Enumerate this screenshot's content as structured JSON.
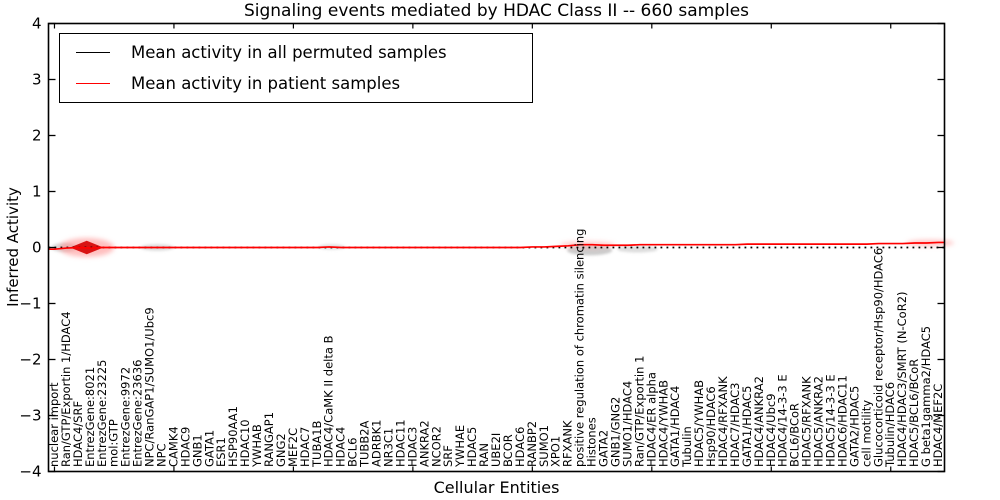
{
  "chart_data": {
    "type": "line",
    "title": "Signaling events mediated by HDAC Class II -- 660 samples",
    "xlabel": "Cellular Entities",
    "ylabel": "Inferred Activity",
    "ylim": [
      -4,
      4
    ],
    "yticks": [
      -4,
      -3,
      -2,
      -1,
      0,
      1,
      2,
      3,
      4
    ],
    "ytick_labels": [
      "−4",
      "−3",
      "−2",
      "−1",
      "0",
      "1",
      "2",
      "3",
      "4"
    ],
    "x_major_tick_every": 10,
    "grid": false,
    "legend_position": "upper left",
    "categories": [
      "nuclear import",
      "Ran/GTP/Exportin 1/HDAC4",
      "HDAC4/SRF",
      "EntrezGene:8021",
      "EntrezGene:23225",
      "mol:GTP",
      "EntrezGene:9972",
      "EntrezGene:23636",
      "NPC/RanGAP1/SUMO1/Ubc9",
      "NPC",
      "CAMK4",
      "HDAC9",
      "GNB1",
      "GATA1",
      "ESR1",
      "HSP90AA1",
      "HDAC10",
      "YWHAB",
      "RANGAP1",
      "GNG2",
      "MEF2C",
      "HDAC7",
      "TUBA1B",
      "HDAC4/CaMK II delta B",
      "HDAC4",
      "BCL6",
      "TUBB2A",
      "ADRBK1",
      "NR3C1",
      "HDAC11",
      "HDAC3",
      "ANKRA2",
      "NCOR2",
      "SRF",
      "YWHAE",
      "HDAC5",
      "RAN",
      "UBE2I",
      "BCOR",
      "HDAC6",
      "RANBP2",
      "SUMO1",
      "XPO1",
      "RFXANK",
      "positive regulation of chromatin silencing",
      "Histones",
      "GATA2",
      "GNB1/GNG2",
      "SUMO1/HDAC4",
      "Ran/GTP/Exportin 1",
      "HDAC4/ER alpha",
      "HDAC4/YWHAB",
      "GATA1/HDAC4",
      "Tubulin",
      "HDAC5/YWHAB",
      "Hsp90/HDAC6",
      "HDAC4/RFXANK",
      "HDAC7/HDAC3",
      "GATA1/HDAC5",
      "HDAC4/ANKRA2",
      "HDAC4/Ubc9",
      "HDAC4/14-3-3 E",
      "BCL6/BCoR",
      "HDAC5/RFXANK",
      "HDAC5/ANKRA2",
      "HDAC5/14-3-3 E",
      "HDAC6/HDAC11",
      "GATA2/HDAC5",
      "cell motility",
      "Glucocorticoid receptor/Hsp90/HDAC6",
      "Tubulin/HDAC6",
      "HDAC4/HDAC3/SMRT (N-CoR2)",
      "HDAC5/BCL6/BCoR",
      "G beta1gamma2/HDAC5",
      "HDAC4/MEF2C"
    ],
    "series": [
      {
        "name": "Mean activity in all permuted samples",
        "color": "#000000",
        "linestyle": "dotted",
        "values": [
          0,
          0,
          0,
          0,
          0,
          0,
          0,
          0,
          0,
          0,
          0,
          0,
          0,
          0,
          0,
          0,
          0,
          0,
          0,
          0,
          0,
          0,
          0,
          0,
          0,
          0,
          0,
          0,
          0,
          0,
          0,
          0,
          0,
          0,
          0,
          0,
          0,
          0,
          0,
          0,
          0,
          0,
          0,
          0,
          0,
          0,
          0,
          0,
          0,
          0,
          0,
          0,
          0,
          0,
          0,
          0,
          0,
          0,
          0,
          0,
          0,
          0,
          0,
          0,
          0,
          0,
          0,
          0,
          0,
          0,
          0,
          0,
          0,
          0,
          0
        ]
      },
      {
        "name": "Mean activity in patient samples",
        "color": "#ff0000",
        "linestyle": "solid",
        "values": [
          -0.03,
          -0.01,
          0,
          -0.01,
          0,
          0,
          0,
          0,
          0,
          0,
          0,
          0,
          0,
          0,
          0,
          0,
          0,
          0,
          0,
          0,
          0,
          0,
          0,
          0.01,
          0,
          0,
          0,
          0,
          0,
          0,
          0,
          0,
          0,
          0,
          0,
          0,
          0,
          0,
          0,
          0,
          0.01,
          0.01,
          0.02,
          0.03,
          0.05,
          0.05,
          0.04,
          0.04,
          0.04,
          0.05,
          0.05,
          0.05,
          0.05,
          0.05,
          0.05,
          0.05,
          0.05,
          0.05,
          0.06,
          0.06,
          0.06,
          0.06,
          0.06,
          0.06,
          0.06,
          0.06,
          0.06,
          0.06,
          0.06,
          0.07,
          0.07,
          0.07,
          0.08,
          0.08,
          0.09
        ]
      }
    ],
    "uncertainty_blobs": [
      {
        "index": 0.8,
        "dy": 0,
        "rx": 1.1,
        "ry": 0.08,
        "color": "#aaaaaa",
        "opacity": 0.45,
        "blur": 1,
        "shape": "ellipse"
      },
      {
        "index": 2.7,
        "dy": 0,
        "rx": 2.3,
        "ry": 0.17,
        "color": "#ff8a8a",
        "opacity": 0.55,
        "blur": 2,
        "shape": "ellipse"
      },
      {
        "index": 2.7,
        "dy": 0,
        "rx": 1.4,
        "ry": 0.12,
        "color": "#d40000",
        "opacity": 0.9,
        "blur": 0,
        "shape": "diamond"
      },
      {
        "index": 8.6,
        "dy": 0,
        "rx": 1.4,
        "ry": 0.06,
        "color": "#aaaaaa",
        "opacity": 0.4,
        "blur": 1,
        "shape": "ellipse"
      },
      {
        "index": 23.2,
        "dy": 0.01,
        "rx": 1.1,
        "ry": 0.05,
        "color": "#aaaaaa",
        "opacity": 0.35,
        "blur": 1,
        "shape": "ellipse"
      },
      {
        "index": 44.8,
        "dy": -0.05,
        "rx": 1.9,
        "ry": 0.09,
        "color": "#999999",
        "opacity": 0.5,
        "blur": 1,
        "shape": "ellipse"
      },
      {
        "index": 48.8,
        "dy": -0.03,
        "rx": 1.7,
        "ry": 0.06,
        "color": "#aaaaaa",
        "opacity": 0.4,
        "blur": 1,
        "shape": "ellipse"
      },
      {
        "index": 44.6,
        "dy": 0.05,
        "rx": 2.3,
        "ry": 0.06,
        "color": "#ff9a9a",
        "opacity": 0.5,
        "blur": 2,
        "shape": "ellipse"
      },
      {
        "index": 73.3,
        "dy": 0.08,
        "rx": 2.0,
        "ry": 0.06,
        "color": "#ff9a9a",
        "opacity": 0.55,
        "blur": 2,
        "shape": "ellipse"
      }
    ]
  }
}
